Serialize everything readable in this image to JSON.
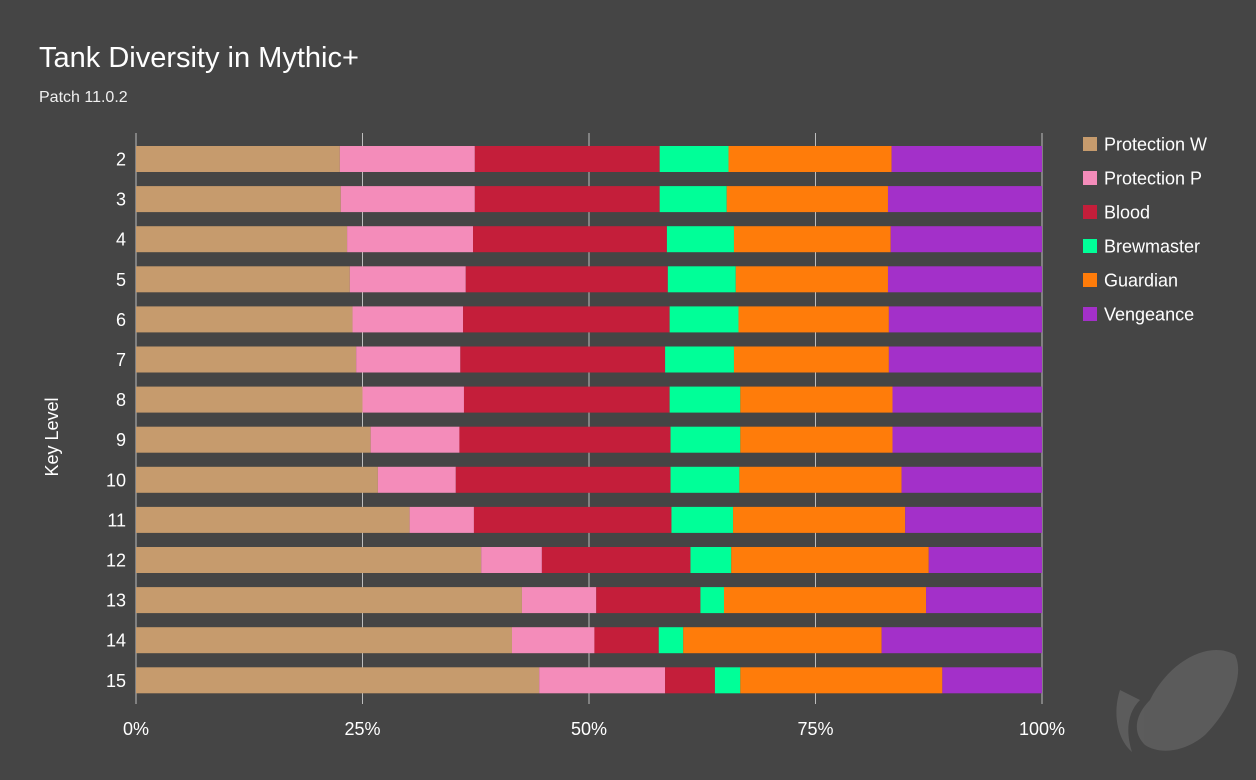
{
  "chart_data": {
    "type": "bar",
    "orientation": "horizontal",
    "stacked": "percent",
    "title": "Tank Diversity in Mythic+",
    "subtitle": "Patch 11.0.2",
    "ylabel": "Key Level",
    "xlabel": "",
    "xlim": [
      0,
      100
    ],
    "x_ticks": [
      "0%",
      "25%",
      "50%",
      "75%",
      "100%"
    ],
    "x_tick_values": [
      0,
      25,
      50,
      75,
      100
    ],
    "grid": "vertical",
    "legend_position": "right",
    "categories": [
      "2",
      "3",
      "4",
      "5",
      "6",
      "7",
      "8",
      "9",
      "10",
      "11",
      "12",
      "13",
      "14",
      "15"
    ],
    "series": [
      {
        "name": "Protection W",
        "color": "#c69b6d",
        "values": [
          22.5,
          22.6,
          23.3,
          23.6,
          23.9,
          24.3,
          25.0,
          25.9,
          26.7,
          30.2,
          38.1,
          42.6,
          41.5,
          44.5
        ]
      },
      {
        "name": "Protection P",
        "color": "#f48cba",
        "values": [
          14.9,
          14.8,
          13.9,
          12.8,
          12.2,
          11.5,
          11.2,
          9.8,
          8.6,
          7.1,
          6.7,
          8.2,
          9.1,
          13.9
        ]
      },
      {
        "name": "Blood",
        "color": "#c41e3a",
        "values": [
          20.4,
          20.4,
          21.4,
          22.3,
          22.8,
          22.6,
          22.7,
          23.3,
          23.7,
          21.8,
          16.4,
          11.5,
          7.1,
          5.5
        ]
      },
      {
        "name": "Brewmaster",
        "color": "#00ff98",
        "values": [
          7.6,
          7.4,
          7.4,
          7.5,
          7.6,
          7.6,
          7.8,
          7.7,
          7.6,
          6.8,
          4.5,
          2.6,
          2.7,
          2.8
        ]
      },
      {
        "name": "Guardian",
        "color": "#ff7c0a",
        "values": [
          18.0,
          17.8,
          17.3,
          16.8,
          16.6,
          17.1,
          16.8,
          16.8,
          17.9,
          19.0,
          21.8,
          22.3,
          21.9,
          22.3
        ]
      },
      {
        "name": "Vengeance",
        "color": "#a330c9",
        "values": [
          16.6,
          17.0,
          16.7,
          17.0,
          16.9,
          16.9,
          16.5,
          16.5,
          15.5,
          15.1,
          12.5,
          12.8,
          17.7,
          11.0
        ]
      }
    ]
  }
}
